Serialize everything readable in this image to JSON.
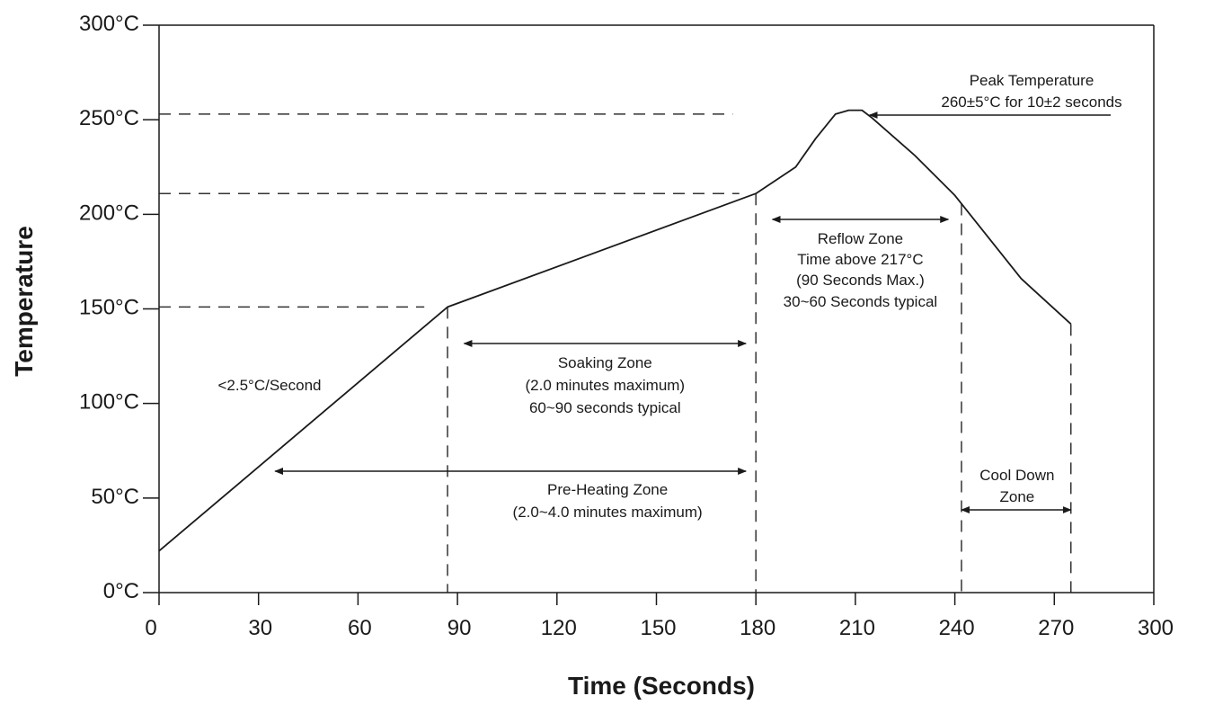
{
  "chart_data": {
    "type": "line",
    "title": "",
    "xlabel": "Time (Seconds)",
    "ylabel": "Temperature",
    "xlim": [
      0,
      300
    ],
    "ylim": [
      0,
      300
    ],
    "x_ticks": [
      "0",
      "30",
      "60",
      "90",
      "120",
      "150",
      "180",
      "210",
      "240",
      "270",
      "300"
    ],
    "y_ticks": [
      "0°C",
      "50°C",
      "100°C",
      "150°C",
      "200°C",
      "250°C",
      "300°C"
    ],
    "grid": false,
    "series": [
      {
        "x": [
          0,
          87,
          180,
          192,
          198,
          204,
          208,
          212,
          215,
          228,
          240,
          250,
          260,
          275
        ],
        "y": [
          22,
          151,
          211,
          225,
          240,
          253,
          255,
          255,
          251,
          231,
          210,
          188,
          166,
          142
        ]
      }
    ],
    "reference_levels": [
      {
        "y": 151,
        "x_end": 80
      },
      {
        "y": 211,
        "x_end": 175
      },
      {
        "y": 253,
        "x_end": 173
      }
    ],
    "zone_markers": [
      87,
      180,
      242,
      275
    ],
    "zones": [
      {
        "x_start": 35,
        "x_end": 177,
        "lines": [
          "Pre-Heating Zone",
          "(2.0~4.0 minutes maximum)"
        ]
      },
      {
        "x_start": 92,
        "x_end": 177,
        "lines": [
          "Soaking Zone",
          "(2.0 minutes maximum)",
          "60~90 seconds typical"
        ]
      },
      {
        "x_start": 185,
        "x_end": 238,
        "lines": [
          "Reflow Zone",
          "Time above 217°C",
          "(90 Seconds Max.)",
          "30~60 Seconds typical"
        ]
      },
      {
        "x_start": 242,
        "x_end": 275,
        "lines": [
          "Cool Down",
          "Zone"
        ]
      }
    ],
    "annotations": [
      {
        "text": "<2.5°C/Second"
      },
      {
        "lines": [
          "Peak Temperature",
          "260±5°C for 10±2 seconds"
        ],
        "points_to": [
          214,
          253
        ]
      }
    ]
  }
}
